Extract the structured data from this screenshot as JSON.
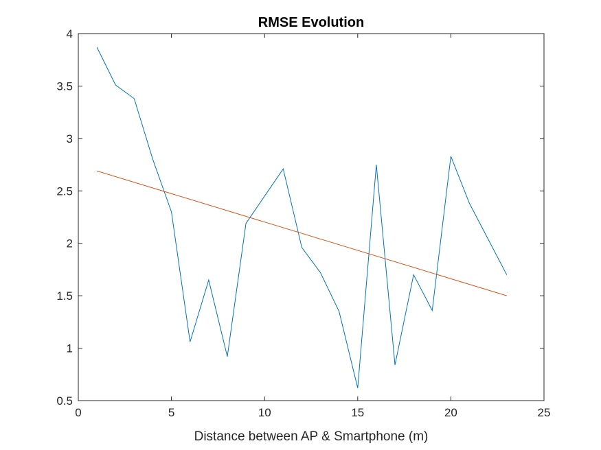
{
  "chart_data": {
    "type": "line",
    "title": "RMSE Evolution",
    "xlabel": "Distance between AP & Smartphone (m)",
    "ylabel": "",
    "xlim": [
      0,
      25
    ],
    "ylim": [
      0.5,
      4
    ],
    "xticks": [
      "0",
      "5",
      "10",
      "15",
      "20",
      "25"
    ],
    "yticks": [
      "0.5",
      "1",
      "1.5",
      "2",
      "2.5",
      "3",
      "3.5",
      "4"
    ],
    "grid": false,
    "series": [
      {
        "color": "#0072BD",
        "x": [
          1,
          2,
          3,
          4,
          5,
          6,
          7,
          8,
          9,
          10,
          11,
          12,
          13,
          14,
          15,
          16,
          17,
          18,
          19,
          20,
          21,
          22,
          23
        ],
        "y": [
          3.87,
          3.51,
          3.38,
          2.8,
          2.3,
          1.06,
          1.65,
          0.92,
          2.19,
          2.45,
          2.71,
          1.96,
          1.72,
          1.35,
          0.62,
          2.75,
          0.84,
          1.7,
          1.36,
          2.83,
          2.38,
          2.04,
          1.7
        ]
      },
      {
        "color": "#D95319",
        "x": [
          1,
          23
        ],
        "y": [
          2.69,
          1.5
        ]
      }
    ]
  }
}
